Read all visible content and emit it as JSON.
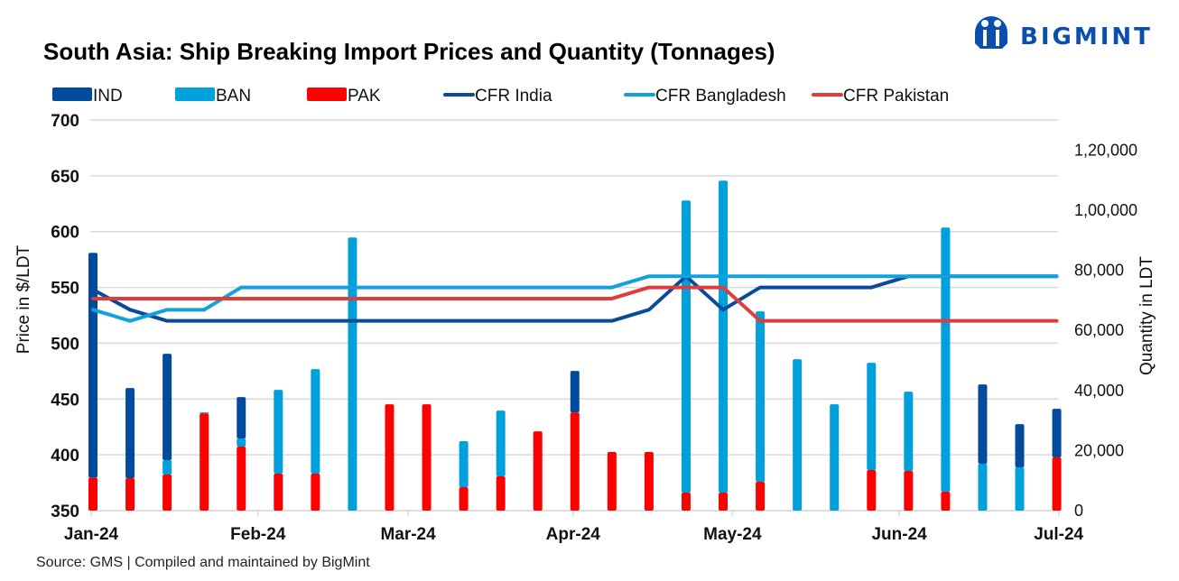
{
  "brand": {
    "name": "BIGMINT",
    "color": "#0a4fae"
  },
  "source": "Source: GMS | Compiled and maintained by BigMint",
  "colors": {
    "IND": "#004b9b",
    "BAN": "#00a0dc",
    "PAK": "#ff0000",
    "CFR India": "#0a4a9a",
    "CFR Bangladesh": "#12a2db",
    "CFR Pakistan": "#e03c3c",
    "grid": "#d9d9d9"
  },
  "chart_data": {
    "type": "bar",
    "title": "South Asia: Ship Breaking Import Prices and Quantity (Tonnages)",
    "xlabel": "",
    "ylabel": "Price in $/LDT",
    "y2label": "Quantity in LDT",
    "ylim": [
      350,
      700
    ],
    "yticks": [
      "700",
      "650",
      "600",
      "550",
      "500",
      "450",
      "400",
      "350"
    ],
    "y2lim": [
      0,
      130000
    ],
    "y2ticks": [
      "1,20,000",
      "1,00,000",
      "80,000",
      "60,000",
      "40,000",
      "20,000",
      "0"
    ],
    "y2tick_values": [
      120000,
      100000,
      80000,
      60000,
      40000,
      20000,
      0
    ],
    "grid": true,
    "legend_position": "top",
    "x_tick_labels": [
      "Jan-24",
      "Feb-24",
      "Mar-24",
      "Apr-24",
      "May-24",
      "Jun-24",
      "Jul-24"
    ],
    "x_tick_weeks": [
      0,
      4.5,
      8.55,
      13,
      17.3,
      21.8,
      26.1
    ],
    "weeks": 27,
    "legend": [
      {
        "name": "IND",
        "kind": "bar"
      },
      {
        "name": "BAN",
        "kind": "bar"
      },
      {
        "name": "PAK",
        "kind": "bar"
      },
      {
        "name": "CFR India",
        "kind": "line"
      },
      {
        "name": "CFR Bangladesh",
        "kind": "line"
      },
      {
        "name": "CFR Pakistan",
        "kind": "line"
      }
    ],
    "bar_series": [
      {
        "name": "PAK",
        "axis": "right",
        "values": [
          11000,
          10800,
          12000,
          32400,
          21300,
          12300,
          12300,
          0,
          35400,
          35400,
          7800,
          11400,
          26400,
          32700,
          19500,
          19500,
          6000,
          6000,
          9600,
          0,
          0,
          13500,
          13200,
          6300,
          0,
          0,
          17700
        ]
      },
      {
        "name": "BAN",
        "axis": "right",
        "values": [
          0,
          0,
          4800,
          300,
          2700,
          27900,
          34800,
          90900,
          0,
          0,
          15300,
          21900,
          0,
          0,
          0,
          0,
          97200,
          103800,
          56700,
          50400,
          35400,
          35700,
          26400,
          87900,
          15600,
          14400,
          0
        ]
      },
      {
        "name": "IND",
        "axis": "right",
        "values": [
          74800,
          30000,
          35400,
          0,
          13800,
          0,
          0,
          0,
          0,
          0,
          0,
          0,
          0,
          13800,
          0,
          0,
          0,
          0,
          0,
          0,
          0,
          0,
          0,
          0,
          26400,
          14400,
          16200
        ]
      }
    ],
    "line_series": [
      {
        "name": "CFR India",
        "axis": "left",
        "values": [
          548,
          530,
          520,
          520,
          520,
          520,
          520,
          520,
          520,
          520,
          520,
          520,
          520,
          520,
          520,
          530,
          560,
          530,
          550,
          550,
          550,
          550,
          560,
          560,
          560,
          560,
          560
        ]
      },
      {
        "name": "CFR Bangladesh",
        "axis": "left",
        "values": [
          530,
          520,
          530,
          530,
          550,
          550,
          550,
          550,
          550,
          550,
          550,
          550,
          550,
          550,
          550,
          560,
          560,
          560,
          560,
          560,
          560,
          560,
          560,
          560,
          560,
          560,
          560
        ]
      },
      {
        "name": "CFR Pakistan",
        "axis": "left",
        "values": [
          540,
          540,
          540,
          540,
          540,
          540,
          540,
          540,
          540,
          540,
          540,
          540,
          540,
          540,
          540,
          550,
          550,
          550,
          520,
          520,
          520,
          520,
          520,
          520,
          520,
          520,
          520
        ]
      }
    ]
  }
}
